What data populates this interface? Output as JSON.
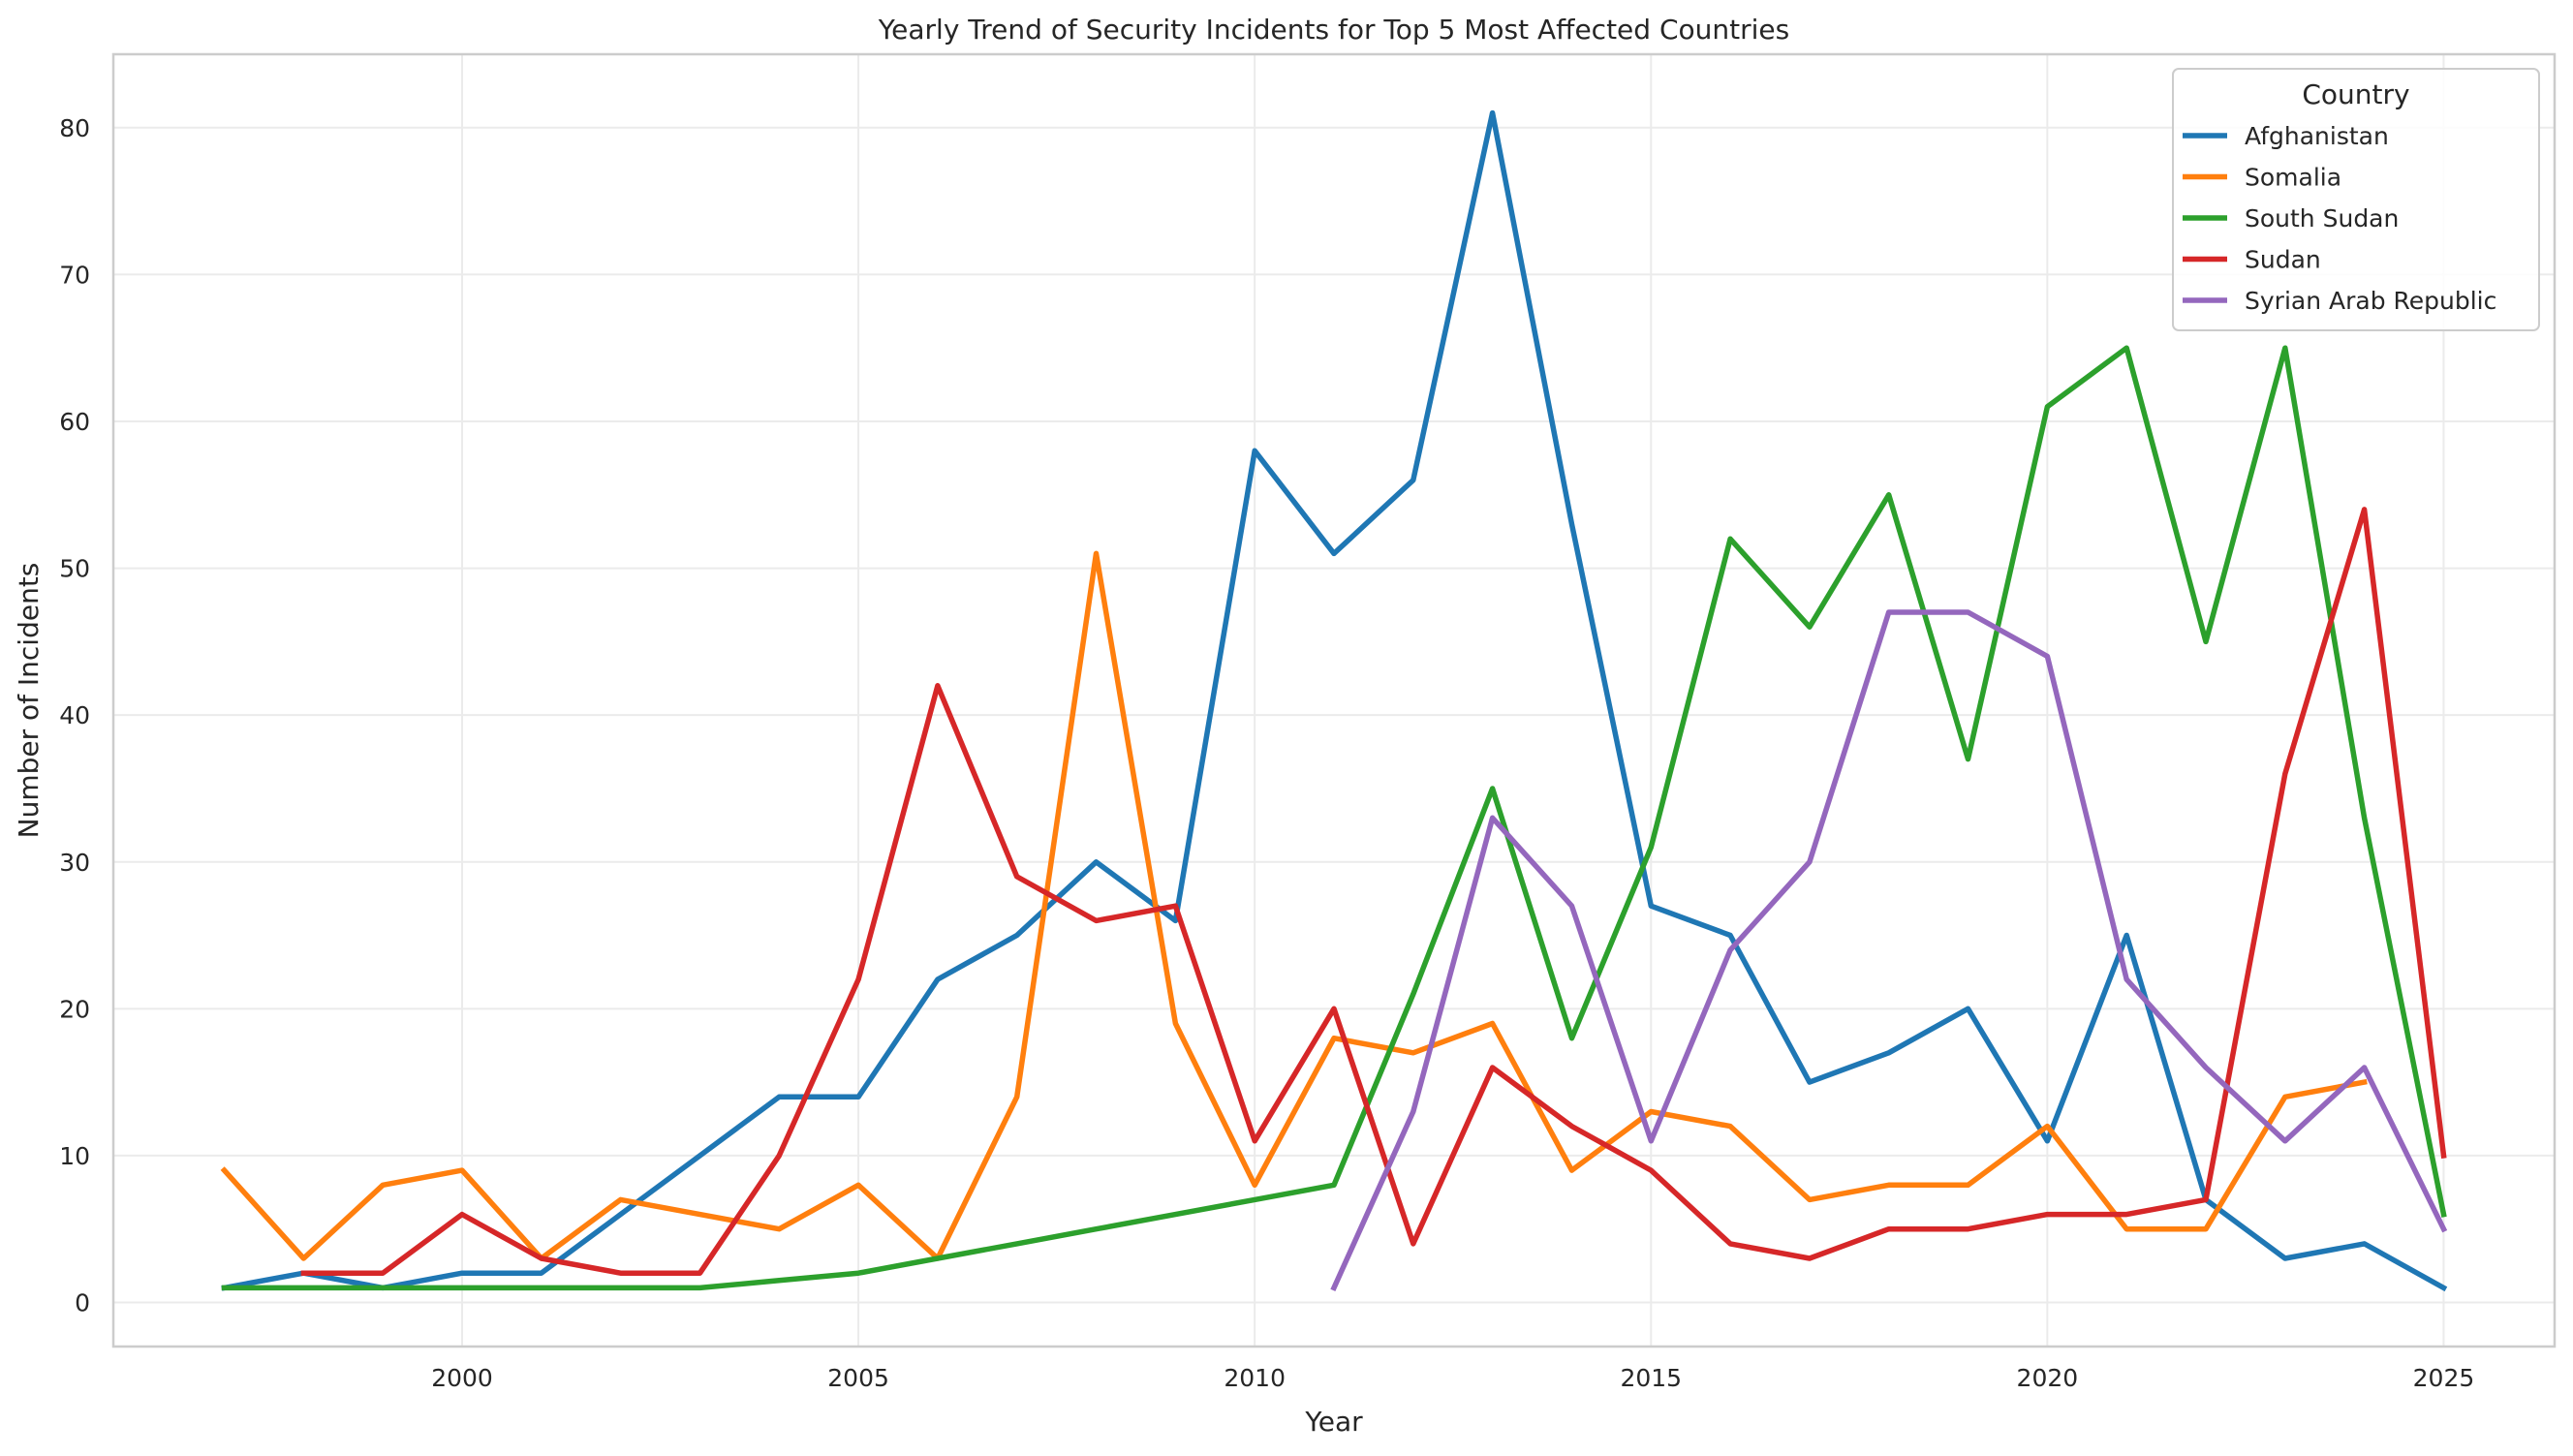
{
  "chart_data": {
    "type": "line",
    "title": "Yearly Trend of Security Incidents for Top 5 Most Affected Countries",
    "xlabel": "Year",
    "ylabel": "Number of Incidents",
    "xlim": [
      1995.6,
      2026.4
    ],
    "ylim": [
      -3,
      85
    ],
    "xticks": [
      2000,
      2005,
      2010,
      2015,
      2020,
      2025
    ],
    "yticks": [
      0,
      10,
      20,
      30,
      40,
      50,
      60,
      70,
      80
    ],
    "grid": true,
    "legend": {
      "title": "Country",
      "placement": "top-right"
    },
    "series": [
      {
        "name": "Afghanistan",
        "color": "#1f77b4",
        "x": [
          1997,
          1998,
          1999,
          2000,
          2001,
          2002,
          2003,
          2004,
          2005,
          2006,
          2007,
          2008,
          2009,
          2010,
          2011,
          2012,
          2013,
          2014,
          2015,
          2016,
          2017,
          2018,
          2019,
          2020,
          2021,
          2022,
          2023,
          2024,
          2025
        ],
        "y": [
          1,
          2,
          1,
          2,
          2,
          6,
          10,
          14,
          14,
          22,
          25,
          30,
          26,
          58,
          51,
          56,
          81,
          53,
          27,
          25,
          15,
          17,
          20,
          11,
          25,
          7,
          3,
          4,
          1
        ]
      },
      {
        "name": "Somalia",
        "color": "#ff7f0e",
        "x": [
          1997,
          1998,
          1999,
          2000,
          2001,
          2002,
          2003,
          2004,
          2005,
          2006,
          2007,
          2008,
          2009,
          2010,
          2011,
          2012,
          2013,
          2014,
          2015,
          2016,
          2017,
          2018,
          2019,
          2020,
          2021,
          2022,
          2023,
          2024
        ],
        "y": [
          9,
          3,
          8,
          9,
          3,
          7,
          6,
          5,
          8,
          3,
          14,
          51,
          19,
          8,
          18,
          17,
          19,
          9,
          13,
          12,
          7,
          8,
          8,
          12,
          5,
          5,
          14,
          15
        ]
      },
      {
        "name": "South Sudan",
        "color": "#2ca02c",
        "x": [
          1997,
          1998,
          1999,
          2000,
          2001,
          2002,
          2003,
          2004,
          2005,
          2006,
          2007,
          2008,
          2009,
          2010,
          2011,
          2012,
          2013,
          2014,
          2015,
          2016,
          2017,
          2018,
          2019,
          2020,
          2021,
          2022,
          2023,
          2024,
          2025
        ],
        "y": [
          1,
          1,
          1,
          1,
          1,
          1,
          1,
          1.5,
          2,
          3,
          4,
          5,
          6,
          7,
          8,
          21,
          35,
          18,
          31,
          52,
          46,
          55,
          37,
          61,
          65,
          45,
          65,
          33,
          6
        ]
      },
      {
        "name": "Sudan",
        "color": "#d62728",
        "x": [
          1998,
          1999,
          2000,
          2001,
          2002,
          2003,
          2004,
          2005,
          2006,
          2007,
          2008,
          2009,
          2010,
          2011,
          2012,
          2013,
          2014,
          2015,
          2016,
          2017,
          2018,
          2019,
          2020,
          2021,
          2022,
          2023,
          2024,
          2025
        ],
        "y": [
          2,
          2,
          6,
          3,
          2,
          2,
          10,
          22,
          42,
          29,
          26,
          27,
          11,
          20,
          4,
          16,
          12,
          9,
          4,
          3,
          5,
          5,
          6,
          6,
          7,
          36,
          54,
          10
        ]
      },
      {
        "name": "Syrian Arab Republic",
        "color": "#9467bd",
        "x": [
          2011,
          2012,
          2013,
          2014,
          2015,
          2016,
          2017,
          2018,
          2019,
          2020,
          2021,
          2022,
          2023,
          2024,
          2025
        ],
        "y": [
          1,
          13,
          33,
          27,
          11,
          24,
          30,
          47,
          47,
          44,
          22,
          16,
          11,
          16,
          5
        ]
      }
    ]
  }
}
